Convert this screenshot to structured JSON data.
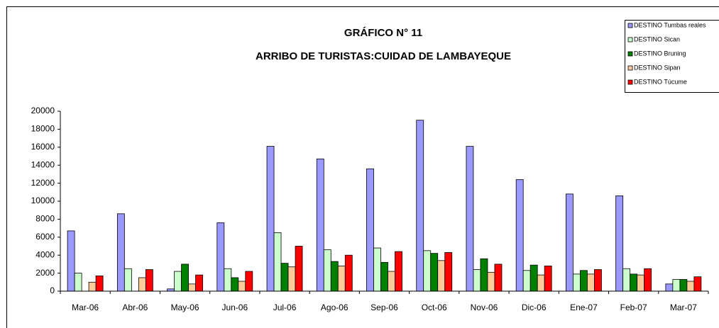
{
  "chart_data": {
    "type": "bar",
    "title": "GRÁFICO N° 11",
    "subtitle": "ARRIBO DE TURISTAS:CUIDAD DE LAMBAYEQUE",
    "categories": [
      "Mar-06",
      "Abr-06",
      "May-06",
      "Jun-06",
      "Jul-06",
      "Ago-06",
      "Sep-06",
      "Oct-06",
      "Nov-06",
      "Dic-06",
      "Ene-07",
      "Feb-07",
      "Mar-07"
    ],
    "series": [
      {
        "name": "DESTINO Tumbas reales",
        "color": "#9999ff",
        "values": [
          6700,
          8600,
          250,
          7600,
          16100,
          14700,
          13600,
          19000,
          16100,
          12400,
          10800,
          10600,
          800
        ]
      },
      {
        "name": "DESTINO Sican",
        "color": "#ccffcc",
        "values": [
          2000,
          2500,
          2200,
          2500,
          6500,
          4600,
          4800,
          4500,
          2400,
          2300,
          1900,
          2500,
          1300
        ]
      },
      {
        "name": "DESTINO Bruning",
        "color": "#008000",
        "values": [
          0,
          0,
          3000,
          1500,
          3100,
          3300,
          3200,
          4200,
          3600,
          2900,
          2300,
          1900,
          1300
        ]
      },
      {
        "name": "DESTINO Sipan",
        "color": "#ffcc99",
        "values": [
          1000,
          1500,
          800,
          1100,
          2700,
          2800,
          2200,
          3400,
          2100,
          1800,
          1900,
          1800,
          1100
        ]
      },
      {
        "name": "DESTINO Túcume",
        "color": "#ff0000",
        "values": [
          1700,
          2400,
          1800,
          2200,
          5000,
          4000,
          4400,
          4300,
          3000,
          2800,
          2400,
          2500,
          1600
        ]
      }
    ],
    "ylim": [
      0,
      20000
    ],
    "yticks": [
      0,
      2000,
      4000,
      6000,
      8000,
      10000,
      12000,
      14000,
      16000,
      18000,
      20000
    ],
    "grid": false,
    "legend": "top-right"
  }
}
